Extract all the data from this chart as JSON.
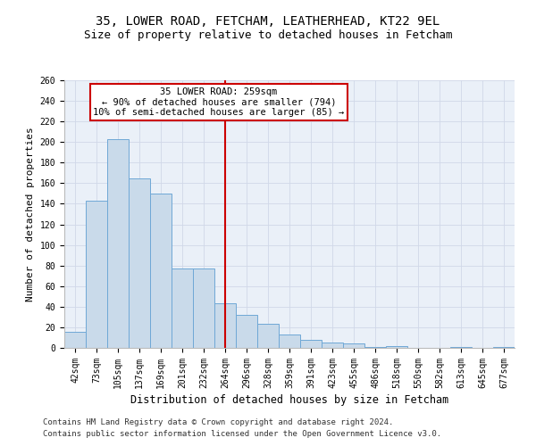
{
  "title1": "35, LOWER ROAD, FETCHAM, LEATHERHEAD, KT22 9EL",
  "title2": "Size of property relative to detached houses in Fetcham",
  "xlabel": "Distribution of detached houses by size in Fetcham",
  "ylabel": "Number of detached properties",
  "bar_labels": [
    "42sqm",
    "73sqm",
    "105sqm",
    "137sqm",
    "169sqm",
    "201sqm",
    "232sqm",
    "264sqm",
    "296sqm",
    "328sqm",
    "359sqm",
    "391sqm",
    "423sqm",
    "455sqm",
    "486sqm",
    "518sqm",
    "550sqm",
    "582sqm",
    "613sqm",
    "645sqm",
    "677sqm"
  ],
  "bar_heights": [
    16,
    143,
    203,
    165,
    150,
    77,
    77,
    43,
    32,
    23,
    13,
    8,
    5,
    4,
    1,
    2,
    0,
    0,
    1,
    0,
    1
  ],
  "bar_color": "#c9daea",
  "bar_edge_color": "#6fa8d6",
  "bar_width": 1.0,
  "vline_x_idx": 7,
  "vline_color": "#cc0000",
  "annotation_text": "35 LOWER ROAD: 259sqm\n← 90% of detached houses are smaller (794)\n10% of semi-detached houses are larger (85) →",
  "annotation_box_color": "white",
  "annotation_box_edge": "#cc0000",
  "ylim": [
    0,
    260
  ],
  "yticks": [
    0,
    20,
    40,
    60,
    80,
    100,
    120,
    140,
    160,
    180,
    200,
    220,
    240,
    260
  ],
  "grid_color": "#d0d8e8",
  "background_color": "#eaf0f8",
  "footer_line1": "Contains HM Land Registry data © Crown copyright and database right 2024.",
  "footer_line2": "Contains public sector information licensed under the Open Government Licence v3.0.",
  "title1_fontsize": 10,
  "title2_fontsize": 9,
  "xlabel_fontsize": 8.5,
  "ylabel_fontsize": 8,
  "tick_fontsize": 7,
  "footer_fontsize": 6.5,
  "annot_fontsize": 7.5
}
